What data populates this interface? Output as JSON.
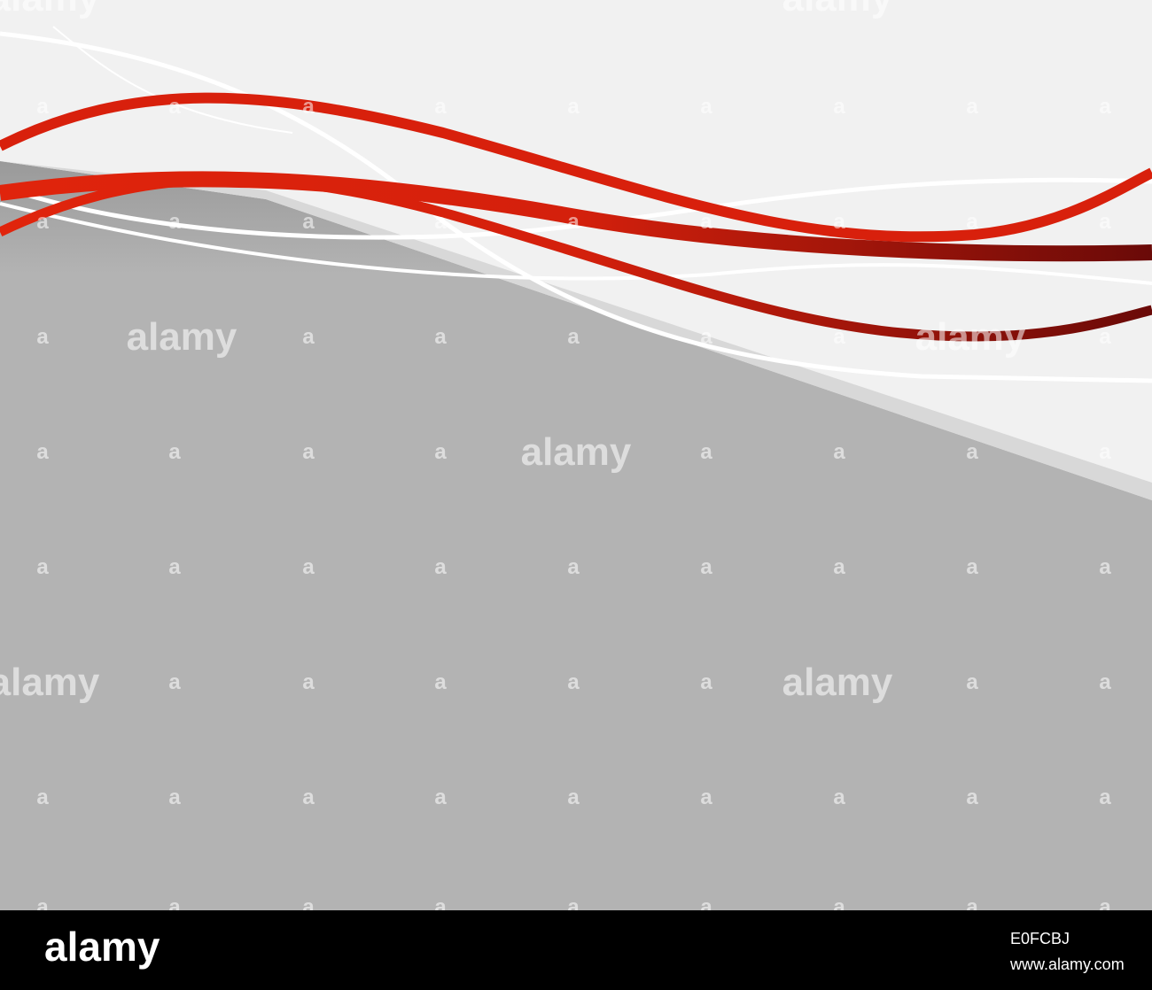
{
  "watermark": {
    "word": "alamy",
    "mark": "a"
  },
  "footer": {
    "logo": "alamy",
    "image_id": "E0FCBJ",
    "url": "www.alamy.com"
  }
}
